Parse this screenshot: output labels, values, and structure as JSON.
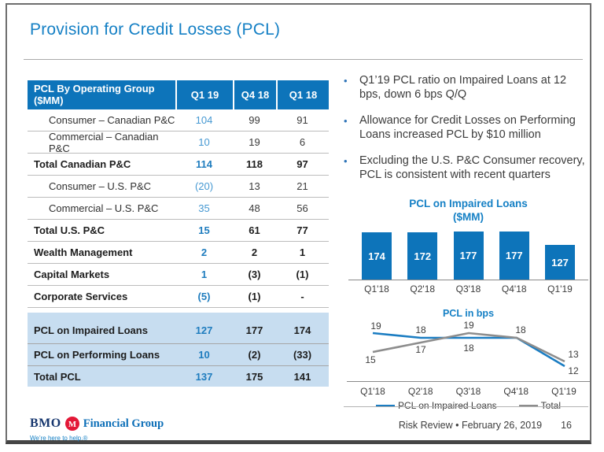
{
  "slide": {
    "title": "Provision for Credit Losses (PCL)",
    "footer": {
      "brand": "BMO",
      "brand_suffix": "Financial Group",
      "tagline": "We’re here to help.®",
      "footer_text": "Risk Review • February 26, 2019",
      "page_number": "16"
    }
  },
  "colors": {
    "accent_blue": "#1580c5",
    "table_header_bg": "#0d74ba",
    "highlight_row_bg": "#c7ddf0",
    "q1_value_blue": "#4598d2",
    "q1_total_blue": "#1e7cbe",
    "bar_blue": "#0d74ba",
    "line_blue": "#1b7dc2",
    "line_gray": "#8d8d8d",
    "logo_navy": "#16366e",
    "logo_red": "#e31837"
  },
  "table": {
    "header": {
      "label": "PCL By Operating Group ($MM)",
      "columns": [
        "Q1 19",
        "Q4 18",
        "Q1 18"
      ]
    },
    "rows": [
      {
        "label": "Consumer – Canadian P&C",
        "values": [
          "104",
          "99",
          "91"
        ],
        "style": "indent"
      },
      {
        "label": "Commercial – Canadian P&C",
        "values": [
          "10",
          "19",
          "6"
        ],
        "style": "indent"
      },
      {
        "label": "Total Canadian P&C",
        "values": [
          "114",
          "118",
          "97"
        ],
        "style": "bold"
      },
      {
        "label": "Consumer – U.S. P&C",
        "values": [
          "(20)",
          "13",
          "21"
        ],
        "style": "indent"
      },
      {
        "label": "Commercial – U.S. P&C",
        "values": [
          "35",
          "48",
          "56"
        ],
        "style": "indent"
      },
      {
        "label": "Total U.S. P&C",
        "values": [
          "15",
          "61",
          "77"
        ],
        "style": "bold"
      },
      {
        "label": "Wealth Management",
        "values": [
          "2",
          "2",
          "1"
        ],
        "style": "bold"
      },
      {
        "label": "Capital Markets",
        "values": [
          "1",
          "(3)",
          "(1)"
        ],
        "style": "bold"
      },
      {
        "label": "Corporate Services",
        "values": [
          "(5)",
          "(1)",
          "-"
        ],
        "style": "bold"
      },
      {
        "label": "PCL on Impaired Loans",
        "values": [
          "127",
          "177",
          "174"
        ],
        "style": "highlight"
      },
      {
        "label": "PCL on Performing Loans",
        "values": [
          "10",
          "(2)",
          "(33)"
        ],
        "style": "highlight"
      },
      {
        "label": "Total PCL",
        "values": [
          "137",
          "175",
          "141"
        ],
        "style": "highlight"
      }
    ]
  },
  "bullets": [
    "Q1’19 PCL ratio on Impaired Loans at 12 bps, down 6 bps Q/Q",
    "Allowance for Credit Losses on Performing Loans increased PCL by $10 million",
    "Excluding the U.S. P&C Consumer recovery, PCL is consistent with recent quarters"
  ],
  "chart_data": [
    {
      "type": "bar",
      "title": "PCL on Impaired Loans",
      "subtitle": "($MM)",
      "categories": [
        "Q1'18",
        "Q2'18",
        "Q3'18",
        "Q4'18",
        "Q1'19"
      ],
      "values": [
        174,
        172,
        177,
        177,
        127
      ],
      "bar_color": "#0d74ba",
      "ylim": [
        0,
        185
      ],
      "grid": false,
      "value_labels": "inside-white-bold"
    },
    {
      "type": "line",
      "title": "PCL in bps",
      "categories": [
        "Q1'18",
        "Q2'18",
        "Q3'18",
        "Q4'18",
        "Q1'19"
      ],
      "series": [
        {
          "name": "PCL on Impaired Loans",
          "values": [
            19,
            18,
            18,
            18,
            12
          ],
          "color": "#1b7dc2"
        },
        {
          "name": "Total",
          "values": [
            15,
            17,
            19,
            18,
            13
          ],
          "color": "#8d8d8d"
        }
      ],
      "ylim": [
        10,
        21
      ],
      "grid": false,
      "legend_position": "bottom"
    }
  ]
}
